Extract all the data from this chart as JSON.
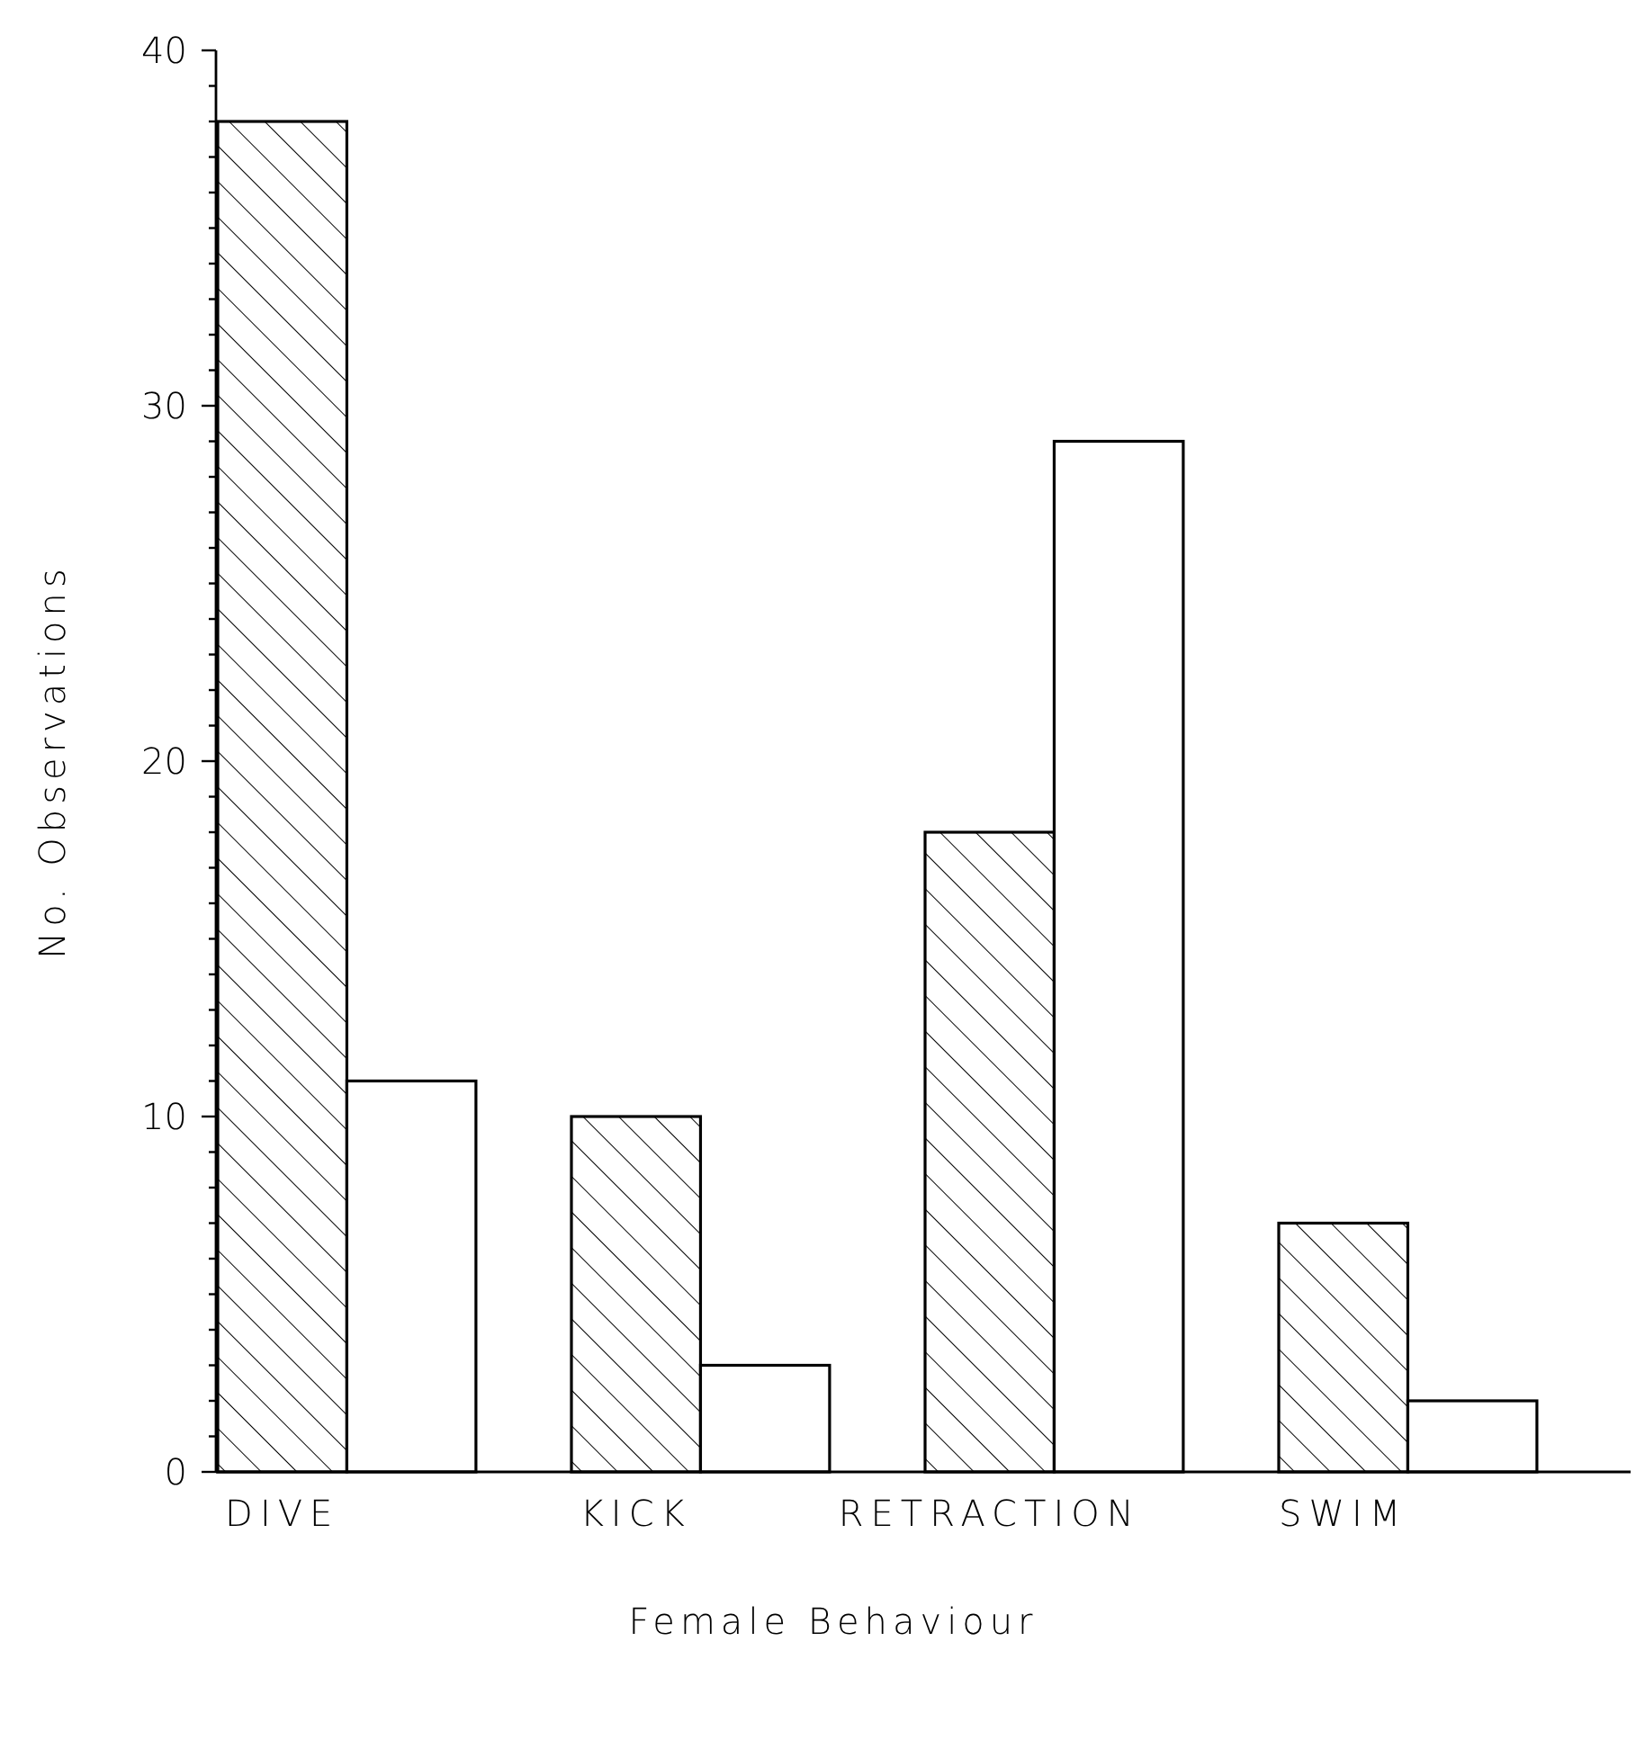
{
  "chart_data": {
    "type": "bar",
    "xlabel": "Female Behaviour",
    "ylabel": "No. Observations",
    "categories": [
      "DIVE",
      "KICK",
      "RETRACTION",
      "SWIM"
    ],
    "series": [
      {
        "color": "#000000",
        "values": [
          38,
          10,
          18,
          7
        ]
      },
      {
        "color": "#ffffff",
        "values": [
          11,
          3,
          29,
          2
        ]
      }
    ],
    "ylim": [
      0,
      40
    ],
    "yticks": [
      0,
      {
        "value": 1,
        "label": null
      },
      {
        "value": 2,
        "label": null
      },
      {
        "value": 3,
        "label": null
      },
      {
        "value": 4,
        "label": null
      },
      {
        "value": 5,
        "label": null
      },
      {
        "value": 6,
        "label": null
      },
      {
        "value": 7,
        "label": null
      },
      {
        "value": 8,
        "label": null
      },
      {
        "value": 9,
        "label": null
      },
      10,
      {
        "value": 11,
        "label": null
      },
      {
        "value": 12,
        "label": null
      },
      {
        "value": 13,
        "label": null
      },
      {
        "value": 14,
        "label": null
      },
      {
        "value": 15,
        "label": null
      },
      {
        "value": 16,
        "label": null
      },
      {
        "value": 17,
        "label": null
      },
      {
        "value": 18,
        "label": null
      },
      {
        "value": 19,
        "label": null
      },
      20,
      {
        "value": 21,
        "label": null
      },
      {
        "value": 22,
        "label": null
      },
      {
        "value": 23,
        "label": null
      },
      {
        "value": 24,
        "label": null
      },
      {
        "value": 25,
        "label": null
      },
      {
        "value": 26,
        "label": null
      },
      {
        "value": 27,
        "label": null
      },
      {
        "value": 28,
        "label": null
      },
      {
        "value": 29,
        "label": null
      },
      30,
      {
        "value": 31,
        "label": null
      },
      {
        "value": 32,
        "label": null
      },
      {
        "value": 33,
        "label": null
      },
      {
        "value": 34,
        "label": null
      },
      {
        "value": 35,
        "label": null
      },
      {
        "value": 36,
        "label": null
      },
      {
        "value": 37,
        "label": null
      },
      {
        "value": 38,
        "label": null
      },
      {
        "value": 39,
        "label": null
      },
      40
    ],
    "grid": false
  }
}
